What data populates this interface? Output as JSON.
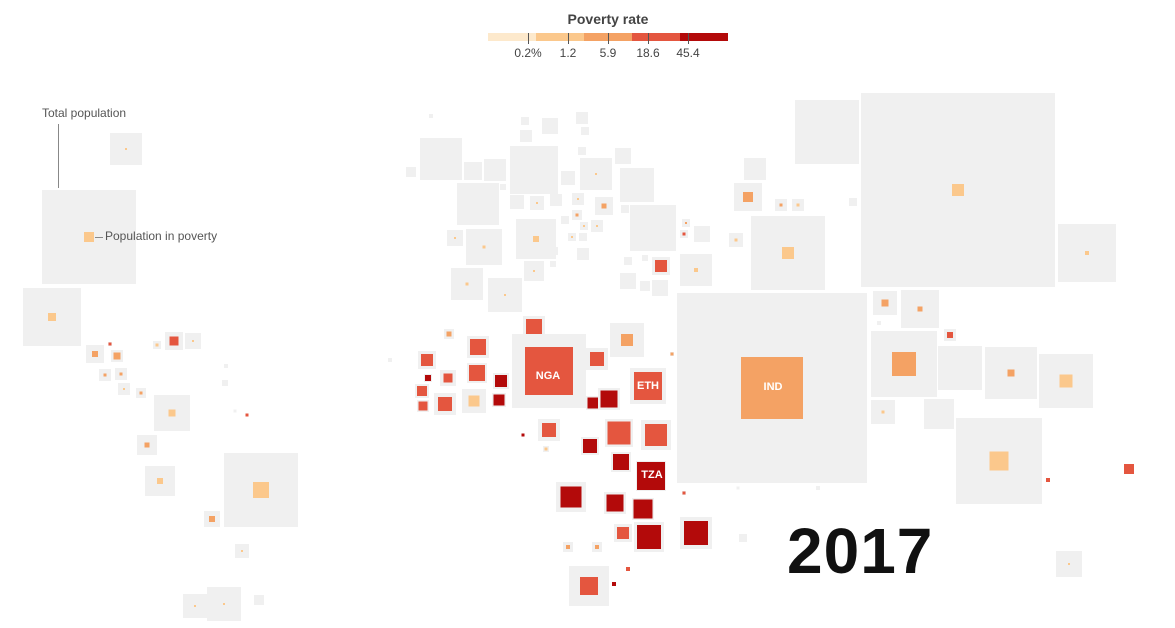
{
  "chart_data": {
    "type": "treemap-cartogram",
    "title": "Poverty rate",
    "year": "2017",
    "legend": {
      "title": "Poverty rate",
      "unit": "%",
      "ticks": [
        "0.2%",
        "1.2",
        "5.9",
        "18.6",
        "45.4"
      ],
      "colors": [
        "#fde9cc",
        "#fbc88c",
        "#f4a264",
        "#e4563f",
        "#b30a0a"
      ]
    },
    "annotations": {
      "total_population": "Total population",
      "population_in_poverty": "Population in poverty"
    },
    "highlighted_countries": [
      {
        "code": "NGA",
        "poverty_rate_band": "18.6-45.4"
      },
      {
        "code": "ETH",
        "poverty_rate_band": "18.6-45.4"
      },
      {
        "code": "TZA",
        "poverty_rate_band": ">45.4"
      },
      {
        "code": "IND",
        "poverty_rate_band": "5.9-18.6"
      }
    ]
  },
  "colors": {
    "background_square": "#f0f0f0",
    "text_dark": "#111111"
  }
}
